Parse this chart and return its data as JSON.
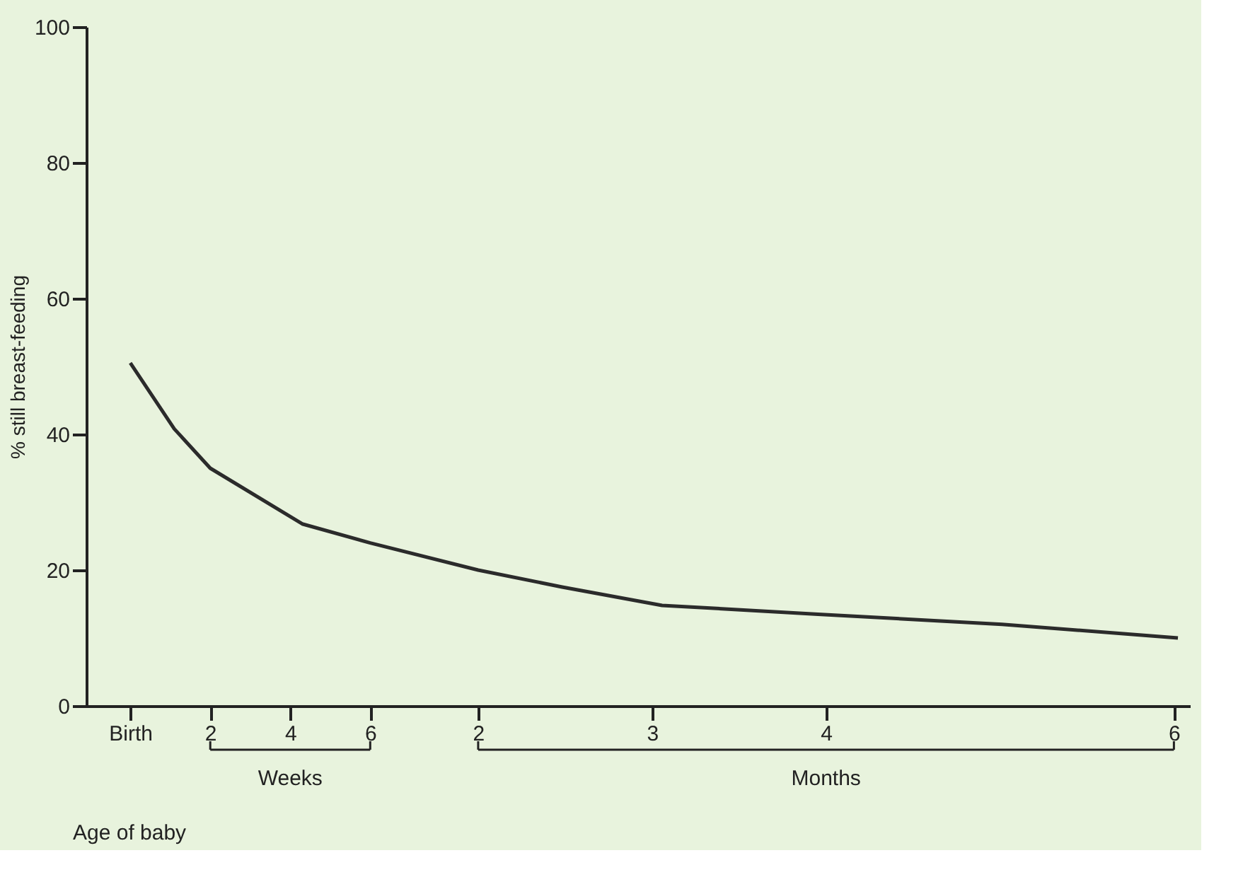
{
  "chart_data": {
    "type": "line",
    "xlabel": "Age of baby",
    "ylabel": "% still breast-feeding",
    "x": [
      0,
      1.1,
      2,
      4.3,
      6,
      8.7,
      10.8,
      13.3,
      17.2,
      21.8,
      26.2
    ],
    "series": [
      {
        "color": "#2b2b2b",
        "values": [
          50.5,
          40.8,
          35,
          26.8,
          24,
          20,
          17.5,
          14.8,
          13.5,
          12,
          10
        ]
      }
    ],
    "xlim": [
      -1.1,
      26.5
    ],
    "ylim": [
      0,
      100
    ],
    "yticks": [
      0,
      20,
      40,
      60,
      80,
      100
    ],
    "xticks": [
      {
        "value": 0,
        "label": "Birth"
      },
      2,
      4,
      6
    ],
    "x2lim": [
      -0.2529,
      6.092
    ],
    "x2ticks": [
      2,
      3,
      4,
      6
    ],
    "annotations": [
      "Weeks",
      "Months"
    ],
    "grid": false,
    "marker": "none",
    "line_style": "solid"
  }
}
